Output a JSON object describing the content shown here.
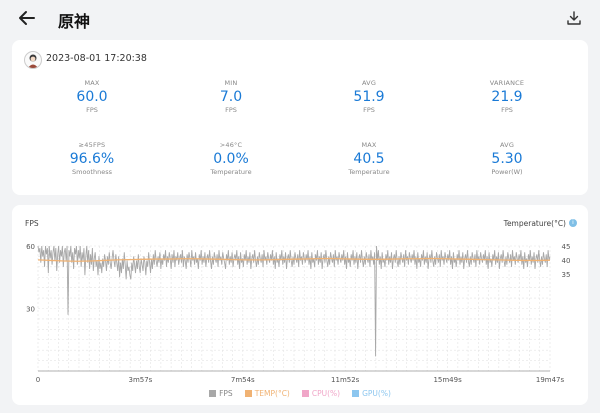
{
  "header": {
    "title": "原神"
  },
  "session": {
    "timestamp": "2023-08-01 17:20:38"
  },
  "stats": [
    {
      "label": "MAX",
      "value": "60.0",
      "unit": "FPS"
    },
    {
      "label": "MIN",
      "value": "7.0",
      "unit": "FPS"
    },
    {
      "label": "AVG",
      "value": "51.9",
      "unit": "FPS"
    },
    {
      "label": "VARIANCE",
      "value": "21.9",
      "unit": "FPS"
    },
    {
      "label": "≥45FPS",
      "value": "96.6%",
      "unit": "Smoothness"
    },
    {
      "label": ">46°C",
      "value": "0.0%",
      "unit": "Temperature"
    },
    {
      "label": "MAX",
      "value": "40.5",
      "unit": "Temperature"
    },
    {
      "label": "AVG",
      "value": "5.30",
      "unit": "Power(W)"
    }
  ],
  "chart_labels": {
    "left_axis": "FPS",
    "right_axis": "Temperature(°C)"
  },
  "chart_data": {
    "type": "line",
    "x_ticks": [
      "0",
      "3m57s",
      "7m54s",
      "11m52s",
      "15m49s",
      "19m47s"
    ],
    "y_left_ticks": [
      "60",
      "30"
    ],
    "y_left_range": [
      0,
      60
    ],
    "y_right_ticks": [
      "45",
      "40",
      "35"
    ],
    "y_right_range": [
      0,
      45
    ],
    "grid": true,
    "series": [
      {
        "name": "FPS",
        "color": "#a8a8a8"
      },
      {
        "name": "TEMP(°C)",
        "color": "#f0b273"
      },
      {
        "name": "CPU(%)",
        "color": "#f0a6c8"
      },
      {
        "name": "GPU(%)",
        "color": "#8cc6ef"
      }
    ],
    "fps_values": [
      60,
      57,
      59,
      52,
      60,
      55,
      58,
      50,
      60,
      56,
      59,
      47,
      60,
      54,
      58,
      51,
      57,
      60,
      53,
      59,
      48,
      56,
      60,
      52,
      58,
      55,
      60,
      50,
      57,
      59,
      53,
      60,
      27,
      58,
      55,
      60,
      52,
      57,
      49,
      59,
      56,
      60,
      51,
      58,
      54,
      60,
      50,
      57,
      53,
      59,
      46,
      55,
      60,
      52,
      58,
      49,
      56,
      51,
      59,
      48,
      54,
      57,
      50,
      53,
      46,
      55,
      49,
      52,
      47,
      54,
      50,
      56,
      53,
      48,
      55,
      51,
      57,
      52,
      49,
      54,
      58,
      53,
      50,
      56,
      52,
      48,
      55,
      45,
      52,
      47,
      54,
      49,
      57,
      51,
      44,
      53,
      48,
      50,
      46,
      44,
      52,
      48,
      55,
      51,
      47,
      53,
      49,
      56,
      50,
      47,
      54,
      51,
      48,
      55,
      52,
      46,
      53,
      50,
      57,
      52,
      47,
      54,
      49,
      56,
      51,
      58,
      53,
      50,
      55,
      52,
      57,
      49,
      54,
      51,
      56,
      53,
      58,
      50,
      55,
      52,
      57,
      54,
      49,
      56,
      52,
      58,
      50,
      55,
      53,
      57,
      51,
      54,
      56,
      52,
      58,
      50,
      55,
      53,
      49,
      56,
      52,
      57,
      54,
      50,
      58,
      53,
      55,
      51,
      57,
      52,
      54,
      49,
      56,
      53,
      58,
      51,
      55,
      52,
      57,
      50,
      54,
      56,
      52,
      58,
      53,
      49,
      55,
      51,
      57,
      54,
      52,
      56,
      50,
      58,
      53,
      55,
      51,
      57,
      54,
      52,
      49,
      56,
      53,
      58,
      51,
      55,
      52,
      57,
      50,
      54,
      56,
      53,
      58,
      51,
      55,
      49,
      57,
      52,
      54,
      50,
      56,
      53,
      58,
      51,
      55,
      52,
      57,
      49,
      54,
      56,
      52,
      58,
      53,
      50,
      55,
      51,
      57,
      54,
      52,
      56,
      50,
      58,
      53,
      55,
      51,
      57,
      54,
      52,
      56,
      53,
      58,
      51,
      55,
      49,
      57,
      52,
      54,
      50,
      56,
      53,
      58,
      51,
      55,
      52,
      57,
      49,
      54,
      56,
      52,
      58,
      53,
      50,
      55,
      51,
      57,
      54,
      52,
      56,
      50,
      58,
      53,
      55,
      51,
      57,
      54,
      52,
      56,
      53,
      58,
      51,
      55,
      49,
      57,
      52,
      54,
      50,
      56,
      53,
      58,
      51,
      55,
      52,
      57,
      49,
      54,
      56,
      52,
      58,
      53,
      50,
      55,
      51,
      57,
      54,
      52,
      56,
      50,
      58,
      53,
      55,
      51,
      57,
      54,
      52,
      56,
      53,
      58,
      51,
      55,
      49,
      57,
      52,
      54,
      50,
      56,
      53,
      58,
      51,
      55,
      52,
      57,
      49,
      54,
      56,
      52,
      58,
      53,
      50,
      55,
      51,
      57,
      54,
      52,
      56,
      50,
      58,
      53,
      55,
      51,
      57,
      7,
      60,
      53,
      58,
      51,
      55,
      49,
      57,
      52,
      54,
      50,
      56,
      53,
      58,
      51,
      55,
      52,
      57,
      49,
      54,
      56,
      52,
      58,
      53,
      50,
      55,
      51,
      57,
      54,
      52,
      56,
      50,
      58,
      53,
      55,
      51,
      57,
      54,
      52,
      56,
      53,
      58,
      51,
      55,
      49,
      57,
      52,
      54,
      50,
      56,
      53,
      58,
      51,
      55,
      52,
      57,
      49,
      54,
      56,
      52,
      58,
      53,
      50,
      55,
      51,
      57,
      54,
      52,
      56,
      50,
      58,
      53,
      55,
      51,
      57,
      54,
      52,
      56,
      53,
      58,
      51,
      55,
      49,
      57,
      52,
      54,
      50,
      56,
      53,
      58,
      51,
      55,
      52,
      57,
      49,
      54,
      56,
      52,
      58,
      53,
      50,
      55,
      51,
      57,
      54,
      52,
      56,
      50,
      58,
      53,
      55,
      51,
      57,
      54,
      52,
      56,
      53,
      58,
      51,
      55,
      49,
      57,
      52,
      54,
      50,
      56,
      53,
      58,
      51,
      55,
      52,
      57,
      49,
      54,
      56,
      52,
      58,
      53,
      50,
      55,
      51,
      57,
      54,
      52,
      56,
      50,
      58,
      53,
      55,
      51,
      57,
      54,
      52,
      56,
      53,
      58,
      51,
      55,
      49,
      57,
      52,
      54,
      50,
      56,
      53,
      58,
      51,
      55,
      52,
      57,
      49,
      54,
      56,
      52,
      58,
      53,
      50,
      55,
      51,
      57,
      54,
      52,
      56,
      50,
      58,
      53,
      55
    ],
    "temp_values": [
      40.0,
      39.8,
      39.6,
      39.5,
      39.6,
      39.8,
      40.0,
      40.1,
      40.2,
      40.3,
      40.3,
      40.4,
      40.4,
      40.3,
      40.2,
      40.1,
      40.0,
      40.0,
      40.1,
      40.2,
      40.3,
      40.4,
      40.5,
      40.4,
      40.3,
      40.2,
      40.2,
      40.3,
      40.4,
      40.4,
      40.5,
      40.4,
      40.3,
      40.2,
      40.1,
      40.0,
      39.9,
      39.8,
      39.8,
      39.9
    ]
  }
}
